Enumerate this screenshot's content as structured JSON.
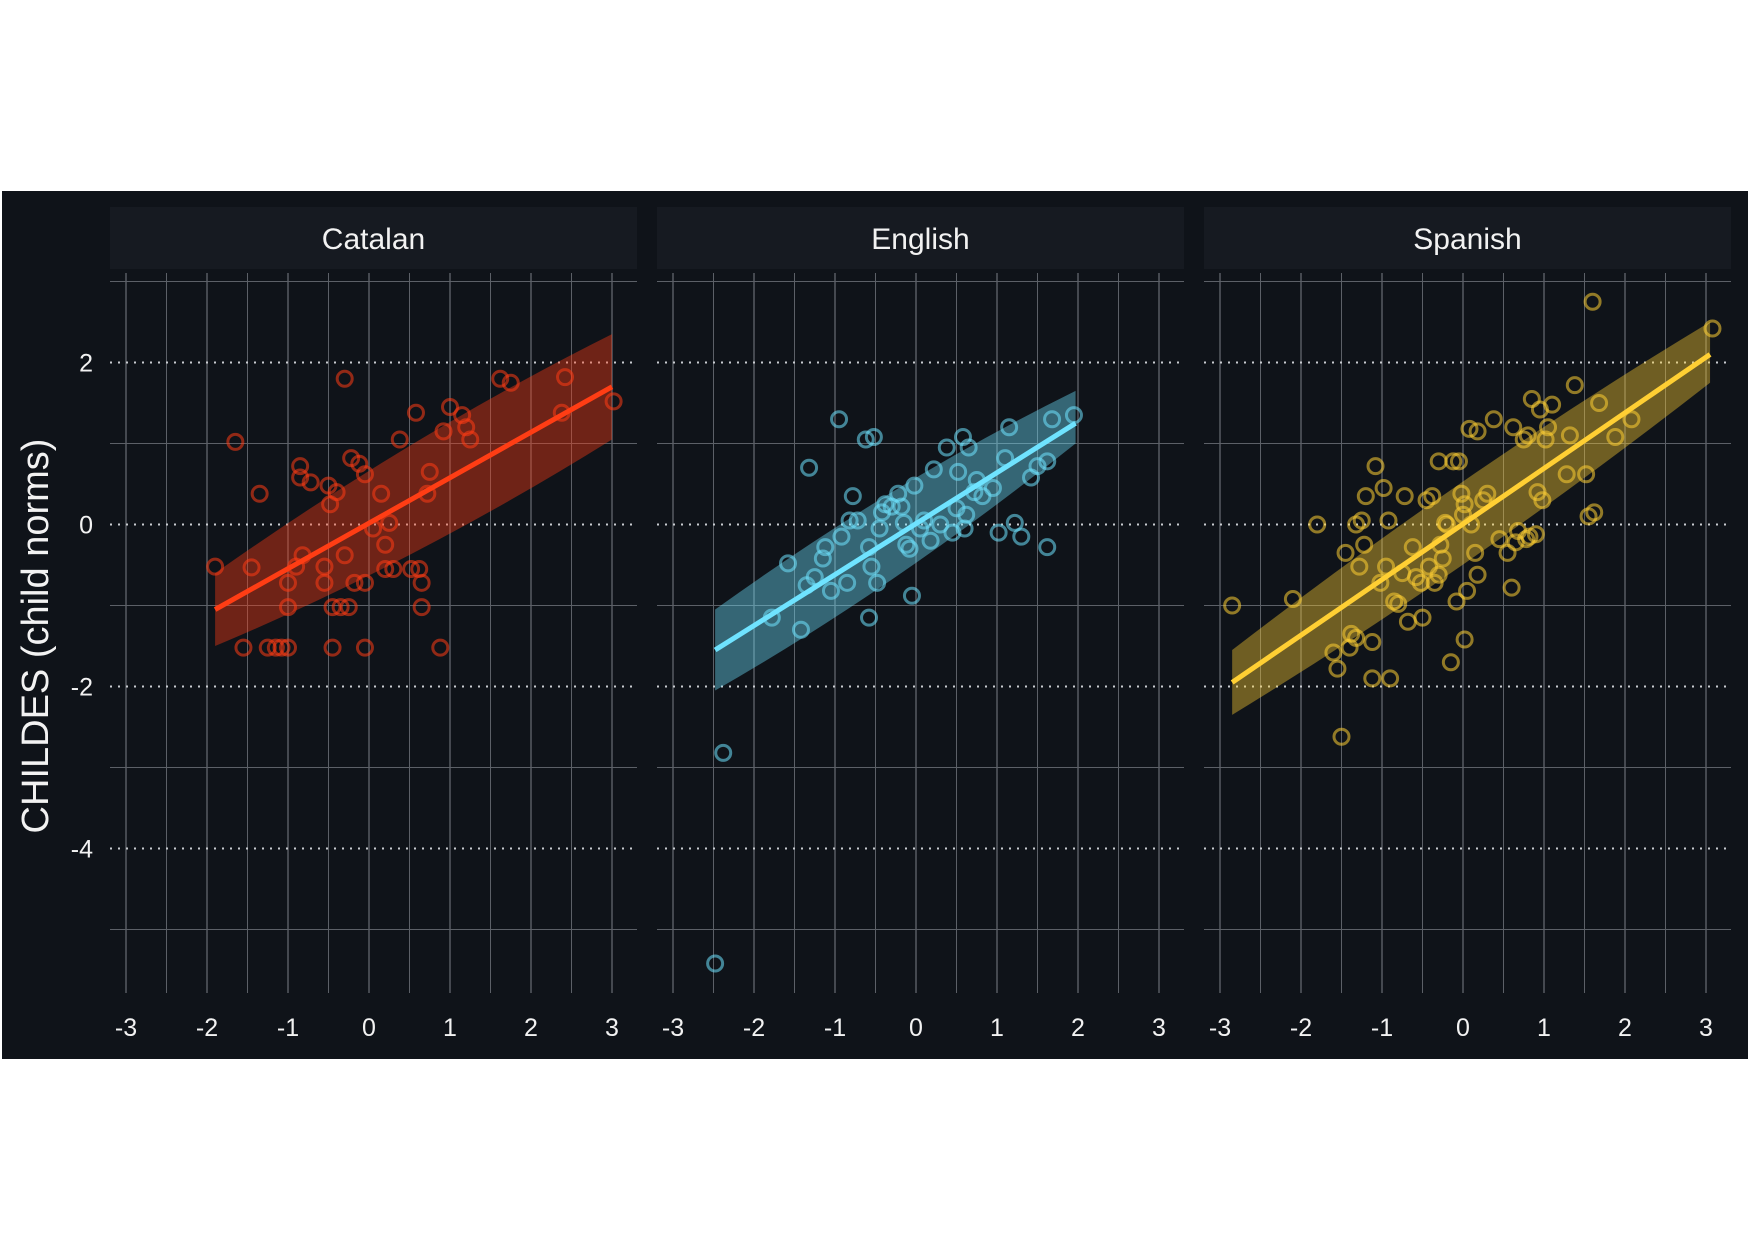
{
  "chart_data": {
    "type": "scatter",
    "ylabel": "CHILDES (child norms)",
    "xlabel": "",
    "xlim": [
      -3.3,
      3.3
    ],
    "ylim": [
      -5.8,
      3.1
    ],
    "x_ticks": [
      -3,
      -2,
      -1,
      0,
      1,
      2,
      3
    ],
    "y_ticks": [
      -4,
      -2,
      0,
      2
    ],
    "grid": true,
    "colors": {
      "background": "#0f1319",
      "strip": "#161a21",
      "grid": "#5c6067"
    },
    "panels": [
      {
        "name": "Catalan",
        "color": "#ff3d14",
        "points": [
          [
            -1.9,
            -0.52
          ],
          [
            -1.65,
            1.02
          ],
          [
            -1.55,
            -1.52
          ],
          [
            -1.45,
            -0.53
          ],
          [
            -1.35,
            0.38
          ],
          [
            -1.25,
            -1.52
          ],
          [
            -1.15,
            -1.52
          ],
          [
            -1.08,
            -1.52
          ],
          [
            -1.0,
            -1.52
          ],
          [
            -1.0,
            -1.02
          ],
          [
            -1.0,
            -0.72
          ],
          [
            -0.9,
            -0.52
          ],
          [
            -0.85,
            0.72
          ],
          [
            -0.85,
            0.58
          ],
          [
            -0.82,
            -0.38
          ],
          [
            -0.72,
            0.52
          ],
          [
            -0.55,
            -0.72
          ],
          [
            -0.55,
            -0.52
          ],
          [
            -0.5,
            0.48
          ],
          [
            -0.48,
            0.25
          ],
          [
            -0.45,
            -1.52
          ],
          [
            -0.45,
            -1.02
          ],
          [
            -0.4,
            0.4
          ],
          [
            -0.35,
            -1.02
          ],
          [
            -0.3,
            1.8
          ],
          [
            -0.3,
            -0.38
          ],
          [
            -0.25,
            -1.02
          ],
          [
            -0.22,
            0.82
          ],
          [
            -0.18,
            -0.72
          ],
          [
            -0.12,
            0.75
          ],
          [
            -0.05,
            -0.72
          ],
          [
            -0.05,
            -1.52
          ],
          [
            -0.05,
            0.62
          ],
          [
            0.05,
            -0.05
          ],
          [
            0.15,
            0.38
          ],
          [
            0.2,
            -0.25
          ],
          [
            0.2,
            -0.55
          ],
          [
            0.25,
            0.02
          ],
          [
            0.3,
            -0.55
          ],
          [
            0.38,
            1.05
          ],
          [
            0.52,
            -0.55
          ],
          [
            0.58,
            1.38
          ],
          [
            0.62,
            -0.55
          ],
          [
            0.65,
            -0.72
          ],
          [
            0.65,
            -1.02
          ],
          [
            0.72,
            0.38
          ],
          [
            0.75,
            0.65
          ],
          [
            0.88,
            -1.52
          ],
          [
            0.92,
            1.15
          ],
          [
            1.0,
            1.45
          ],
          [
            1.15,
            1.35
          ],
          [
            1.2,
            1.2
          ],
          [
            1.25,
            1.05
          ],
          [
            1.62,
            1.8
          ],
          [
            1.75,
            1.75
          ],
          [
            2.38,
            1.38
          ],
          [
            2.42,
            1.82
          ],
          [
            3.02,
            1.52
          ]
        ],
        "fit": {
          "x": [
            -1.9,
            3.0
          ],
          "y": [
            -1.05,
            1.7
          ],
          "ci_lo": [
            -1.5,
            1.05
          ],
          "ci_hi": [
            -0.6,
            2.35
          ]
        }
      },
      {
        "name": "English",
        "color": "#6fe3ff",
        "points": [
          [
            -2.48,
            -5.42
          ],
          [
            -2.38,
            -2.82
          ],
          [
            -1.78,
            -1.15
          ],
          [
            -1.58,
            -0.48
          ],
          [
            -1.42,
            -1.3
          ],
          [
            -1.35,
            -0.75
          ],
          [
            -1.32,
            0.7
          ],
          [
            -1.25,
            -0.65
          ],
          [
            -1.15,
            -0.42
          ],
          [
            -1.12,
            -0.28
          ],
          [
            -1.05,
            -0.82
          ],
          [
            -0.95,
            1.3
          ],
          [
            -0.92,
            -0.15
          ],
          [
            -0.85,
            -0.72
          ],
          [
            -0.82,
            0.05
          ],
          [
            -0.78,
            0.35
          ],
          [
            -0.72,
            0.05
          ],
          [
            -0.62,
            1.05
          ],
          [
            -0.58,
            -1.15
          ],
          [
            -0.58,
            -0.28
          ],
          [
            -0.55,
            -0.52
          ],
          [
            -0.52,
            1.08
          ],
          [
            -0.48,
            -0.72
          ],
          [
            -0.45,
            -0.05
          ],
          [
            -0.42,
            0.15
          ],
          [
            -0.38,
            0.25
          ],
          [
            -0.3,
            0.22
          ],
          [
            -0.22,
            0.38
          ],
          [
            -0.18,
            0.22
          ],
          [
            -0.15,
            0.02
          ],
          [
            -0.12,
            -0.25
          ],
          [
            -0.08,
            -0.3
          ],
          [
            -0.05,
            -0.88
          ],
          [
            -0.02,
            0.48
          ],
          [
            0.05,
            -0.05
          ],
          [
            0.1,
            0.05
          ],
          [
            0.18,
            -0.2
          ],
          [
            0.22,
            0.68
          ],
          [
            0.3,
            0.0
          ],
          [
            0.38,
            0.95
          ],
          [
            0.45,
            -0.1
          ],
          [
            0.5,
            0.2
          ],
          [
            0.52,
            0.65
          ],
          [
            0.58,
            1.08
          ],
          [
            0.6,
            -0.05
          ],
          [
            0.62,
            0.12
          ],
          [
            0.65,
            0.95
          ],
          [
            0.72,
            0.4
          ],
          [
            0.75,
            0.55
          ],
          [
            0.82,
            0.35
          ],
          [
            0.95,
            0.45
          ],
          [
            1.02,
            -0.1
          ],
          [
            1.1,
            0.82
          ],
          [
            1.15,
            1.2
          ],
          [
            1.22,
            0.02
          ],
          [
            1.3,
            -0.15
          ],
          [
            1.42,
            0.58
          ],
          [
            1.5,
            0.72
          ],
          [
            1.62,
            -0.28
          ],
          [
            1.62,
            0.78
          ],
          [
            1.68,
            1.3
          ],
          [
            1.95,
            1.35
          ]
        ],
        "fit": {
          "x": [
            -2.48,
            1.97
          ],
          "y": [
            -1.55,
            1.25
          ],
          "ci_lo": [
            -2.05,
            1.0
          ],
          "ci_hi": [
            -1.05,
            1.65
          ]
        }
      },
      {
        "name": "Spanish",
        "color": "#ffcf33",
        "points": [
          [
            -2.85,
            -1.0
          ],
          [
            -2.1,
            -0.92
          ],
          [
            -1.8,
            0.0
          ],
          [
            -1.6,
            -1.58
          ],
          [
            -1.55,
            -1.78
          ],
          [
            -1.5,
            -2.62
          ],
          [
            -1.45,
            -0.35
          ],
          [
            -1.4,
            -1.52
          ],
          [
            -1.38,
            -1.35
          ],
          [
            -1.32,
            -1.4
          ],
          [
            -1.32,
            0.0
          ],
          [
            -1.28,
            -0.52
          ],
          [
            -1.25,
            0.05
          ],
          [
            -1.22,
            -0.25
          ],
          [
            -1.2,
            0.35
          ],
          [
            -1.12,
            -1.45
          ],
          [
            -1.12,
            -1.9
          ],
          [
            -1.08,
            0.72
          ],
          [
            -1.02,
            -0.72
          ],
          [
            -0.98,
            0.45
          ],
          [
            -0.95,
            -0.52
          ],
          [
            -0.92,
            0.05
          ],
          [
            -0.9,
            -1.9
          ],
          [
            -0.85,
            -0.95
          ],
          [
            -0.8,
            -0.98
          ],
          [
            -0.75,
            -0.6
          ],
          [
            -0.72,
            0.35
          ],
          [
            -0.68,
            -1.2
          ],
          [
            -0.62,
            -0.28
          ],
          [
            -0.58,
            -0.65
          ],
          [
            -0.52,
            -0.72
          ],
          [
            -0.5,
            -1.15
          ],
          [
            -0.45,
            0.3
          ],
          [
            -0.42,
            -0.52
          ],
          [
            -0.38,
            0.35
          ],
          [
            -0.35,
            -0.72
          ],
          [
            -0.3,
            -0.62
          ],
          [
            -0.3,
            0.78
          ],
          [
            -0.28,
            -0.25
          ],
          [
            -0.25,
            -0.42
          ],
          [
            -0.22,
            0.02
          ],
          [
            -0.2,
            0.0
          ],
          [
            -0.15,
            -1.7
          ],
          [
            -0.12,
            0.78
          ],
          [
            -0.08,
            -0.95
          ],
          [
            -0.05,
            0.78
          ],
          [
            -0.02,
            0.38
          ],
          [
            0.0,
            0.12
          ],
          [
            0.02,
            0.25
          ],
          [
            0.02,
            -1.42
          ],
          [
            0.05,
            -0.82
          ],
          [
            0.08,
            1.18
          ],
          [
            0.1,
            0.0
          ],
          [
            0.15,
            -0.35
          ],
          [
            0.18,
            -0.62
          ],
          [
            0.18,
            1.15
          ],
          [
            0.25,
            0.3
          ],
          [
            0.3,
            0.38
          ],
          [
            0.38,
            1.3
          ],
          [
            0.45,
            -0.18
          ],
          [
            0.55,
            -0.35
          ],
          [
            0.6,
            -0.78
          ],
          [
            0.62,
            1.2
          ],
          [
            0.65,
            -0.22
          ],
          [
            0.68,
            -0.08
          ],
          [
            0.75,
            1.05
          ],
          [
            0.78,
            -0.18
          ],
          [
            0.8,
            1.1
          ],
          [
            0.82,
            -0.15
          ],
          [
            0.85,
            1.55
          ],
          [
            0.9,
            -0.12
          ],
          [
            0.92,
            0.4
          ],
          [
            0.95,
            1.42
          ],
          [
            0.98,
            0.3
          ],
          [
            1.02,
            1.05
          ],
          [
            1.05,
            1.2
          ],
          [
            1.1,
            1.48
          ],
          [
            1.28,
            0.62
          ],
          [
            1.32,
            1.1
          ],
          [
            1.38,
            1.72
          ],
          [
            1.52,
            0.62
          ],
          [
            1.55,
            0.1
          ],
          [
            1.6,
            2.75
          ],
          [
            1.62,
            0.15
          ],
          [
            1.68,
            1.5
          ],
          [
            1.88,
            1.08
          ],
          [
            2.08,
            1.3
          ],
          [
            3.08,
            2.42
          ]
        ],
        "fit": {
          "x": [
            -2.85,
            3.05
          ],
          "y": [
            -1.95,
            2.1
          ],
          "ci_lo": [
            -2.35,
            1.75
          ],
          "ci_hi": [
            -1.55,
            2.5
          ]
        }
      }
    ]
  }
}
